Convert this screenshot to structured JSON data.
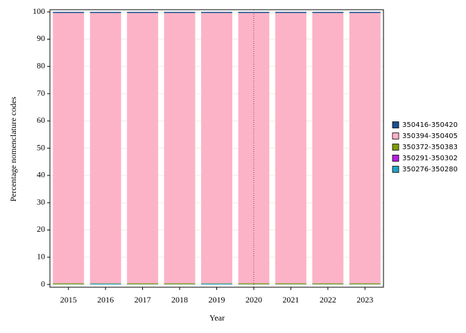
{
  "chart_data": {
    "type": "stacked_bar",
    "x_label": "Year",
    "y_label": "Percentage nomenclature codes",
    "categories": [
      "2015",
      "2016",
      "2017",
      "2018",
      "2019",
      "2020",
      "2021",
      "2022",
      "2023"
    ],
    "series": [
      {
        "name": "350276-350280",
        "color": "#1fa3c4",
        "values": [
          0.1,
          0.3,
          0.1,
          0.1,
          0.3,
          0.1,
          0.1,
          0.1,
          0.1
        ]
      },
      {
        "name": "350291-350302",
        "color": "#b51ee0",
        "values": [
          0,
          0,
          0,
          0,
          0,
          0,
          0,
          0,
          0
        ]
      },
      {
        "name": "350372-350383",
        "color": "#7d9c08",
        "values": [
          0.3,
          0.1,
          0.3,
          0.3,
          0.1,
          0.3,
          0.3,
          0.3,
          0.3
        ]
      },
      {
        "name": "350394-350405",
        "color": "#fdb3c7",
        "values": [
          99.2,
          99.2,
          99.2,
          99.2,
          99.2,
          99.2,
          99.2,
          99.2,
          99.2
        ]
      },
      {
        "name": "350416-350420",
        "color": "#1c4f8f",
        "values": [
          0.4,
          0.4,
          0.4,
          0.4,
          0.4,
          0.4,
          0.4,
          0.4,
          0.4
        ]
      }
    ],
    "ylim": [
      -1,
      100.8
    ],
    "yticks": [
      0,
      10,
      20,
      30,
      40,
      50,
      60,
      70,
      80,
      90,
      100
    ],
    "grid": true,
    "highlight_category": "2020",
    "legend": "right"
  }
}
